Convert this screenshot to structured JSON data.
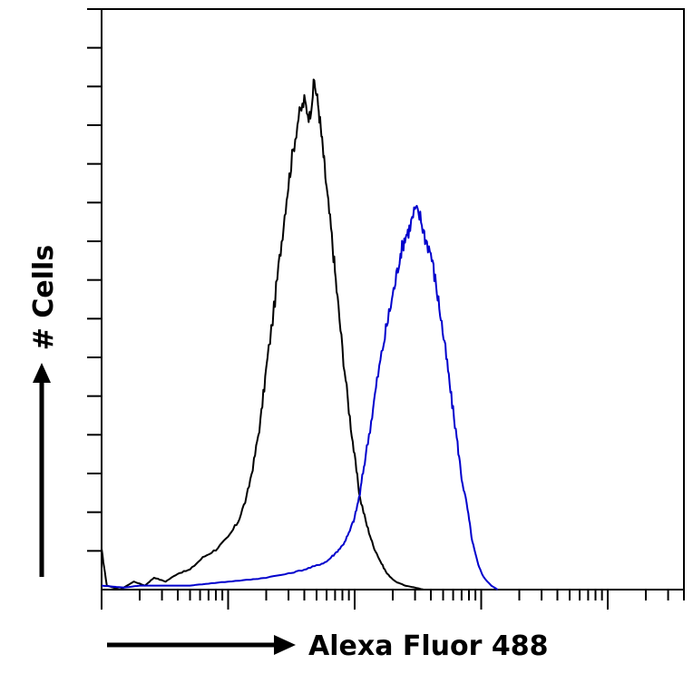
{
  "chart_data": {
    "type": "line",
    "title": "",
    "xlabel": "Alexa Fluor 488",
    "ylabel": "# Cells",
    "x_scale": "log",
    "xlim": [
      0.1,
      4000
    ],
    "ylim": [
      0,
      145
    ],
    "grid": false,
    "legend": "none",
    "series": [
      {
        "color": "#000000",
        "points": [
          [
            0.1,
            10
          ],
          [
            0.11,
            1
          ],
          [
            0.14,
            0
          ],
          [
            0.18,
            2
          ],
          [
            0.22,
            1
          ],
          [
            0.26,
            3
          ],
          [
            0.32,
            2
          ],
          [
            0.4,
            4
          ],
          [
            0.5,
            5
          ],
          [
            0.63,
            8
          ],
          [
            0.8,
            10
          ],
          [
            1.0,
            13
          ],
          [
            1.2,
            17
          ],
          [
            1.4,
            23
          ],
          [
            1.6,
            32
          ],
          [
            1.8,
            42
          ],
          [
            2.0,
            55
          ],
          [
            2.3,
            70
          ],
          [
            2.6,
            85
          ],
          [
            2.9,
            98
          ],
          [
            3.2,
            108
          ],
          [
            3.6,
            118
          ],
          [
            4.0,
            122
          ],
          [
            4.4,
            118
          ],
          [
            4.8,
            127
          ],
          [
            5.2,
            120
          ],
          [
            5.6,
            110
          ],
          [
            6.0,
            100
          ],
          [
            6.6,
            88
          ],
          [
            7.2,
            75
          ],
          [
            8.0,
            60
          ],
          [
            9.0,
            45
          ],
          [
            10.0,
            33
          ],
          [
            11.0,
            23
          ],
          [
            12.5,
            16
          ],
          [
            14.0,
            11
          ],
          [
            16.0,
            7
          ],
          [
            18.0,
            4
          ],
          [
            21.0,
            2
          ],
          [
            25.0,
            1
          ],
          [
            30.0,
            0.5
          ],
          [
            35.0,
            0
          ]
        ]
      },
      {
        "color": "#0000cc",
        "points": [
          [
            0.1,
            1
          ],
          [
            0.15,
            0.5
          ],
          [
            0.2,
            1
          ],
          [
            0.3,
            1
          ],
          [
            0.5,
            1
          ],
          [
            0.7,
            1.5
          ],
          [
            1.0,
            2
          ],
          [
            1.5,
            2.5
          ],
          [
            2.0,
            3
          ],
          [
            3.0,
            4
          ],
          [
            4.0,
            5
          ],
          [
            5.0,
            6
          ],
          [
            6.0,
            7
          ],
          [
            7.0,
            9
          ],
          [
            8.0,
            11
          ],
          [
            9.0,
            14
          ],
          [
            10.0,
            18
          ],
          [
            11.0,
            24
          ],
          [
            12.0,
            32
          ],
          [
            13.5,
            42
          ],
          [
            15.0,
            52
          ],
          [
            17.0,
            62
          ],
          [
            19.0,
            70
          ],
          [
            21.0,
            77
          ],
          [
            23.0,
            84
          ],
          [
            25.0,
            88
          ],
          [
            27.0,
            90
          ],
          [
            30.0,
            95
          ],
          [
            33.0,
            93
          ],
          [
            36.0,
            88
          ],
          [
            40.0,
            84
          ],
          [
            44.0,
            76
          ],
          [
            48.0,
            68
          ],
          [
            53.0,
            58
          ],
          [
            58.0,
            48
          ],
          [
            64.0,
            38
          ],
          [
            70.0,
            28
          ],
          [
            78.0,
            20
          ],
          [
            85.0,
            12
          ],
          [
            95.0,
            6
          ],
          [
            105.0,
            3
          ],
          [
            120.0,
            1
          ],
          [
            135.0,
            0
          ]
        ]
      }
    ]
  }
}
